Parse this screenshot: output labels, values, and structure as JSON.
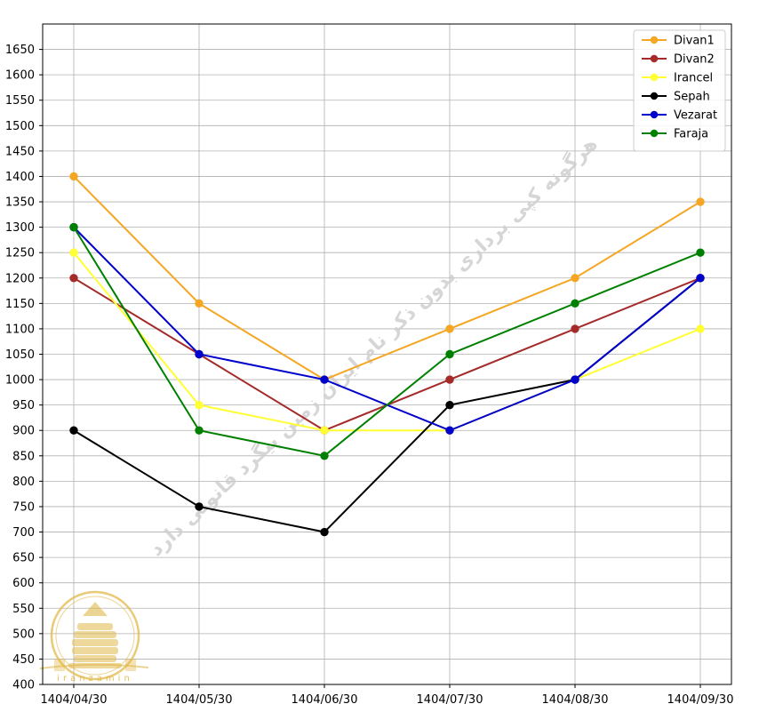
{
  "chart_data": {
    "type": "line",
    "title": "",
    "xlabel": "",
    "ylabel": "",
    "categories": [
      "1404/04/30",
      "1404/05/30",
      "1404/06/30",
      "1404/07/30",
      "1404/08/30",
      "1404/09/30"
    ],
    "ylim": [
      400,
      1700
    ],
    "yticks": [
      400,
      450,
      500,
      550,
      600,
      650,
      700,
      750,
      800,
      850,
      900,
      950,
      1000,
      1050,
      1100,
      1150,
      1200,
      1250,
      1300,
      1350,
      1400,
      1450,
      1500,
      1550,
      1600,
      1650
    ],
    "grid": true,
    "legend_position": "top-right",
    "series": [
      {
        "name": "Divan1",
        "color": "#f5a623",
        "values": [
          1400,
          1150,
          1000,
          1100,
          1200,
          1350
        ]
      },
      {
        "name": "Divan2",
        "color": "#a52a2a",
        "values": [
          1200,
          1050,
          900,
          1000,
          1100,
          1200
        ]
      },
      {
        "name": "Irancel",
        "color": "#ffff33",
        "values": [
          1250,
          950,
          900,
          900,
          1000,
          1100
        ]
      },
      {
        "name": "Sepah",
        "color": "#000000",
        "values": [
          900,
          750,
          700,
          950,
          1000,
          1200
        ]
      },
      {
        "name": "Vezarat",
        "color": "#0000cd",
        "values": [
          1300,
          1050,
          1000,
          900,
          1000,
          1200
        ]
      },
      {
        "name": "Faraja",
        "color": "#008000",
        "values": [
          1300,
          900,
          850,
          1050,
          1150,
          1250
        ]
      }
    ]
  },
  "watermark": {
    "text": "هرگونه کپی برداری بدون ذکر نام ایران زمین پیگرد قانونی دارد",
    "logo_text": "iranzamin",
    "logo_color": "#e0b84a",
    "text_color": "#cfcfcf"
  }
}
